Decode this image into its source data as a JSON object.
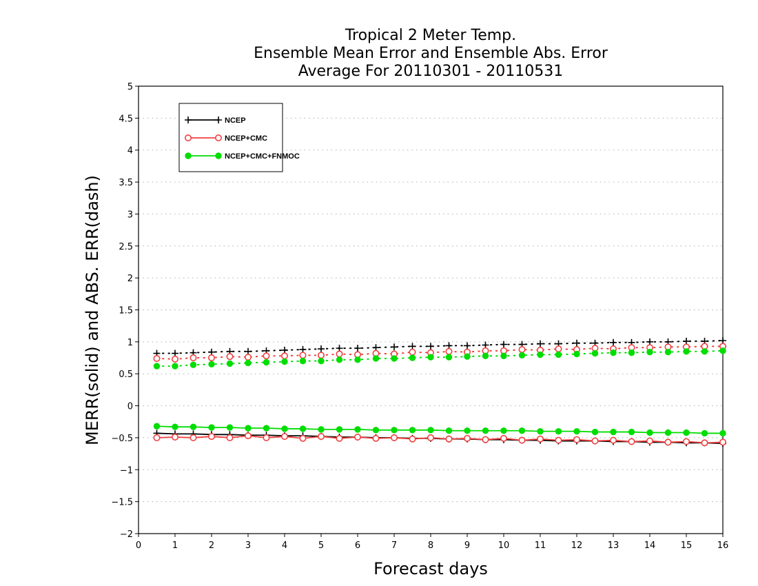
{
  "chart_data": {
    "type": "line",
    "title": [
      "Tropical 2 Meter Temp.",
      "Ensemble Mean Error and Ensemble Abs. Error",
      "Average For 20110301 - 20110531"
    ],
    "xlabel": "Forecast days",
    "ylabel": "MERR(solid) and ABS. ERR(dash)",
    "xlim": [
      0,
      16
    ],
    "ylim": [
      -2,
      5
    ],
    "xticks": [
      "0",
      "1",
      "2",
      "3",
      "4",
      "5",
      "6",
      "7",
      "8",
      "9",
      "10",
      "11",
      "12",
      "13",
      "14",
      "15",
      "16"
    ],
    "yticks": [
      "−2",
      "−1.5",
      "−1",
      "−0.5",
      "0",
      "0.5",
      "1",
      "1.5",
      "2",
      "2.5",
      "3",
      "3.5",
      "4",
      "4.5",
      "5"
    ],
    "grid": "horizontal dotted",
    "legend_position": "top-left",
    "x": [
      0.5,
      1,
      1.5,
      2,
      2.5,
      3,
      3.5,
      4,
      4.5,
      5,
      5.5,
      6,
      6.5,
      7,
      7.5,
      8,
      8.5,
      9,
      9.5,
      10,
      10.5,
      11,
      11.5,
      12,
      12.5,
      13,
      13.5,
      14,
      14.5,
      15,
      15.5,
      16
    ],
    "series": [
      {
        "name": "NCEP",
        "color": "#000000",
        "marker": "plus",
        "merr": [
          -0.43,
          -0.44,
          -0.44,
          -0.45,
          -0.45,
          -0.46,
          -0.46,
          -0.47,
          -0.47,
          -0.48,
          -0.49,
          -0.49,
          -0.5,
          -0.5,
          -0.51,
          -0.51,
          -0.52,
          -0.52,
          -0.53,
          -0.53,
          -0.54,
          -0.54,
          -0.55,
          -0.55,
          -0.55,
          -0.56,
          -0.56,
          -0.57,
          -0.57,
          -0.58,
          -0.58,
          -0.59
        ],
        "abs_err": [
          0.82,
          0.82,
          0.83,
          0.84,
          0.85,
          0.85,
          0.86,
          0.87,
          0.88,
          0.89,
          0.9,
          0.9,
          0.91,
          0.92,
          0.93,
          0.93,
          0.94,
          0.94,
          0.95,
          0.96,
          0.96,
          0.97,
          0.97,
          0.98,
          0.98,
          0.99,
          0.99,
          1.0,
          1.0,
          1.01,
          1.01,
          1.02
        ]
      },
      {
        "name": "NCEP+CMC",
        "color": "#f04040",
        "marker": "open-circle",
        "merr": [
          -0.5,
          -0.49,
          -0.5,
          -0.48,
          -0.5,
          -0.47,
          -0.5,
          -0.48,
          -0.51,
          -0.48,
          -0.51,
          -0.49,
          -0.51,
          -0.5,
          -0.52,
          -0.5,
          -0.52,
          -0.51,
          -0.53,
          -0.51,
          -0.54,
          -0.52,
          -0.54,
          -0.53,
          -0.55,
          -0.54,
          -0.56,
          -0.55,
          -0.57,
          -0.56,
          -0.58,
          -0.57
        ],
        "abs_err": [
          0.74,
          0.73,
          0.75,
          0.75,
          0.77,
          0.76,
          0.78,
          0.78,
          0.79,
          0.79,
          0.81,
          0.8,
          0.82,
          0.81,
          0.84,
          0.83,
          0.85,
          0.84,
          0.86,
          0.86,
          0.88,
          0.87,
          0.89,
          0.88,
          0.9,
          0.89,
          0.91,
          0.91,
          0.92,
          0.92,
          0.93,
          0.93
        ]
      },
      {
        "name": "NCEP+CMC+FNMOC",
        "color": "#00dd00",
        "marker": "filled-circle",
        "merr": [
          -0.32,
          -0.33,
          -0.33,
          -0.34,
          -0.34,
          -0.35,
          -0.35,
          -0.36,
          -0.36,
          -0.37,
          -0.37,
          -0.37,
          -0.38,
          -0.38,
          -0.38,
          -0.38,
          -0.39,
          -0.39,
          -0.39,
          -0.39,
          -0.39,
          -0.4,
          -0.4,
          -0.4,
          -0.41,
          -0.41,
          -0.41,
          -0.42,
          -0.42,
          -0.42,
          -0.43,
          -0.43
        ],
        "abs_err": [
          0.62,
          0.62,
          0.64,
          0.65,
          0.66,
          0.67,
          0.68,
          0.69,
          0.7,
          0.7,
          0.72,
          0.72,
          0.74,
          0.74,
          0.75,
          0.76,
          0.76,
          0.77,
          0.78,
          0.78,
          0.79,
          0.8,
          0.8,
          0.81,
          0.82,
          0.83,
          0.83,
          0.84,
          0.84,
          0.85,
          0.85,
          0.86
        ]
      }
    ]
  }
}
